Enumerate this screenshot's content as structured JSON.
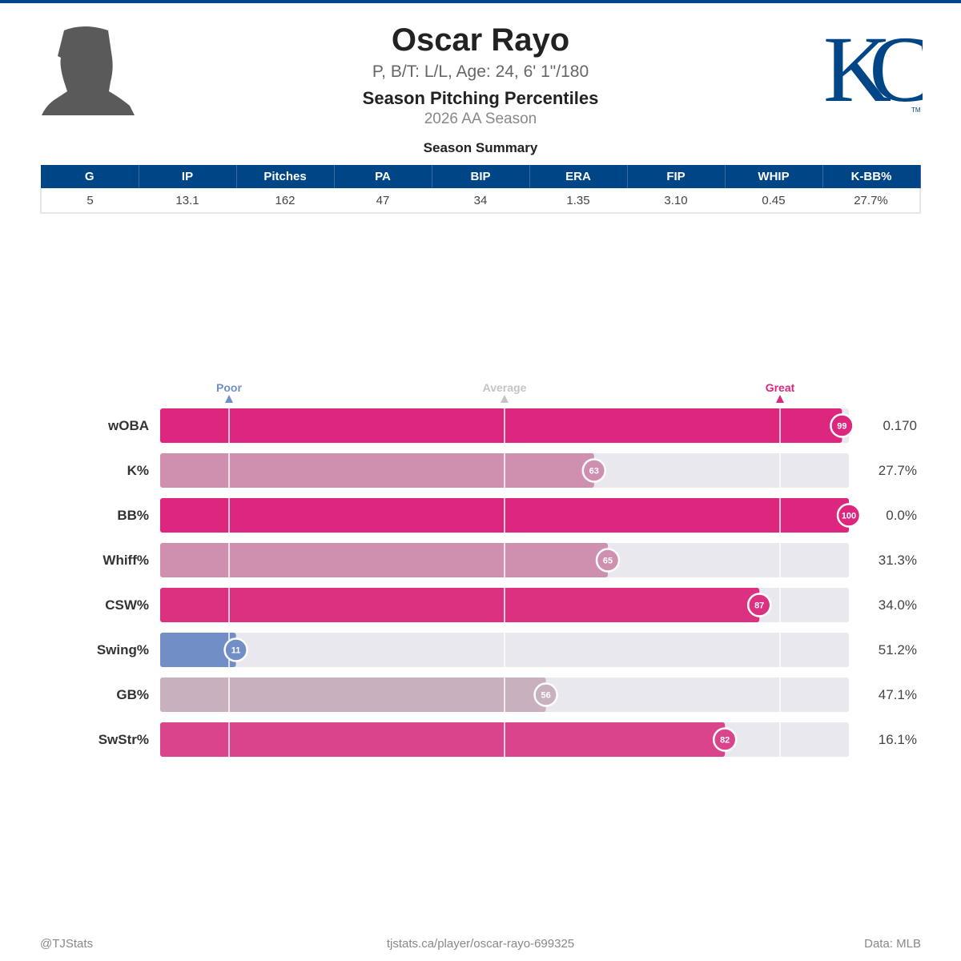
{
  "player": {
    "name": "Oscar Rayo",
    "info": "P, B/T: L/L, Age: 24, 6' 1\"/180",
    "title": "Season Pitching Percentiles",
    "season": "2026 AA Season",
    "team_logo": "KC",
    "team_logo_mark": "TM"
  },
  "summary": {
    "title": "Season Summary",
    "headers": [
      "G",
      "IP",
      "Pitches",
      "PA",
      "BIP",
      "ERA",
      "FIP",
      "WHIP",
      "K-BB%"
    ],
    "values": [
      "5",
      "13.1",
      "162",
      "47",
      "34",
      "1.35",
      "3.10",
      "0.45",
      "27.7%"
    ]
  },
  "chart_data": {
    "type": "bar",
    "orientation": "horizontal",
    "xlim": [
      0,
      100
    ],
    "reference_labels": [
      {
        "label": "Poor",
        "value": 10,
        "color": "#718ec7"
      },
      {
        "label": "Average",
        "value": 50,
        "color": "#c4c4c4"
      },
      {
        "label": "Great",
        "value": 90,
        "color": "#dd267e"
      }
    ],
    "categories": [
      "wOBA",
      "K%",
      "BB%",
      "Whiff%",
      "CSW%",
      "Swing%",
      "GB%",
      "SwStr%"
    ],
    "percentiles": [
      99,
      63,
      100,
      65,
      87,
      11,
      56,
      82
    ],
    "stat_values": [
      "0.170",
      "27.7%",
      "0.0%",
      "31.3%",
      "34.0%",
      "51.2%",
      "47.1%",
      "16.1%"
    ],
    "colors": [
      "#dd267e",
      "#ce90ae",
      "#dd267e",
      "#ce90ae",
      "#dc3181",
      "#718ec7",
      "#c9b0be",
      "#d9448c"
    ]
  },
  "footer": {
    "left": "@TJStats",
    "center": "tjstats.ca/player/oscar-rayo-699325",
    "right": "Data: MLB"
  },
  "colors": {
    "brand": "#004687",
    "track": "#e8e8ee"
  }
}
